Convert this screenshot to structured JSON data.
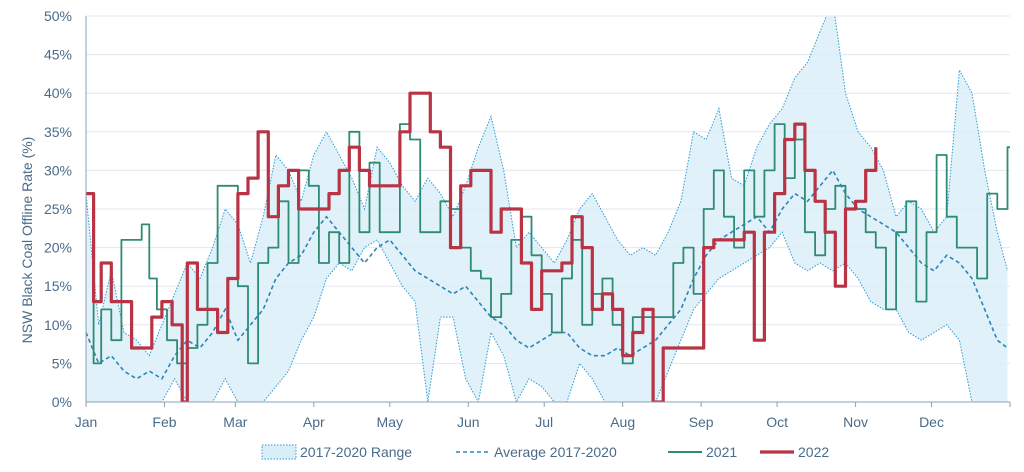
{
  "chart_data": {
    "type": "line",
    "title": "",
    "ylabel": "NSW Black Coal Offline Rate (%)",
    "xlabel": "",
    "ylim": [
      0,
      50
    ],
    "y_ticks": [
      "0%",
      "5%",
      "10%",
      "15%",
      "20%",
      "25%",
      "30%",
      "35%",
      "40%",
      "45%",
      "50%"
    ],
    "x_ticks": [
      "Jan",
      "Feb",
      "Mar",
      "Apr",
      "May",
      "Jun",
      "Jul",
      "Aug",
      "Sep",
      "Oct",
      "Nov",
      "Dec"
    ],
    "x_tick_days": [
      0,
      31,
      59,
      90,
      120,
      151,
      181,
      212,
      243,
      273,
      304,
      334
    ],
    "xlim_days": [
      0,
      365
    ],
    "grid": "horizontal",
    "legend_position": "bottom",
    "colors": {
      "range_fill": "#daeef8",
      "range_line": "#2b9bd6",
      "average": "#2a85b8",
      "y2021": "#2e8b74",
      "y2022": "#b83445",
      "axis": "#8aa0b4",
      "grid": "#e3e8ee",
      "text": "#4a6b8a"
    },
    "series": [
      {
        "name": "2017-2020 Range",
        "style": "band",
        "x": [
          0,
          5,
          10,
          15,
          20,
          25,
          30,
          35,
          40,
          45,
          50,
          55,
          60,
          65,
          70,
          75,
          80,
          85,
          90,
          95,
          100,
          105,
          110,
          115,
          120,
          125,
          130,
          135,
          140,
          145,
          150,
          155,
          160,
          165,
          170,
          175,
          180,
          185,
          190,
          195,
          200,
          205,
          210,
          215,
          220,
          225,
          230,
          235,
          240,
          245,
          250,
          255,
          260,
          265,
          270,
          275,
          280,
          285,
          290,
          295,
          300,
          305,
          310,
          315,
          320,
          325,
          330,
          335,
          340,
          345,
          350,
          355,
          360,
          364
        ],
        "upper": [
          27,
          10,
          17,
          9,
          8,
          6,
          10,
          14,
          18,
          16,
          20,
          25,
          23,
          18,
          24,
          32,
          30,
          26,
          32,
          35,
          32,
          29,
          25,
          33,
          31,
          28,
          26,
          29,
          27,
          24,
          28,
          33,
          37,
          30,
          20,
          22,
          20,
          18,
          21,
          25,
          27,
          24,
          21,
          19,
          20,
          19,
          22,
          26,
          35,
          34,
          38,
          29,
          28,
          33,
          36,
          38,
          42,
          44,
          48,
          52,
          40,
          35,
          33,
          30,
          24,
          26,
          25,
          22,
          24,
          43,
          40,
          30,
          22,
          17
        ],
        "lower": [
          0,
          0,
          0,
          0,
          0,
          0,
          0,
          3,
          0,
          0,
          0,
          3,
          0,
          0,
          0,
          2,
          4,
          8,
          11,
          16,
          18,
          17,
          20,
          21,
          18,
          15,
          13,
          0,
          11,
          11,
          3,
          0,
          9,
          6,
          0,
          3,
          2,
          0,
          0,
          5,
          3,
          0,
          0,
          0,
          0,
          0,
          4,
          8,
          12,
          14,
          16,
          17,
          18,
          19,
          20,
          22,
          18,
          17,
          18,
          17,
          18,
          16,
          13,
          12,
          12,
          9,
          8,
          9,
          10,
          8,
          0,
          0,
          0,
          0
        ]
      },
      {
        "name": "Average 2017-2020",
        "style": "dashed",
        "x": [
          0,
          5,
          10,
          15,
          20,
          25,
          30,
          35,
          40,
          45,
          50,
          55,
          60,
          65,
          70,
          75,
          80,
          85,
          90,
          95,
          100,
          105,
          110,
          115,
          120,
          125,
          130,
          135,
          140,
          145,
          150,
          155,
          160,
          165,
          170,
          175,
          180,
          185,
          190,
          195,
          200,
          205,
          210,
          215,
          220,
          225,
          230,
          235,
          240,
          245,
          250,
          255,
          260,
          265,
          270,
          275,
          280,
          285,
          290,
          295,
          300,
          305,
          310,
          315,
          320,
          325,
          330,
          335,
          340,
          345,
          350,
          355,
          360,
          364
        ],
        "values": [
          9,
          5,
          6,
          4,
          3,
          4,
          3,
          6,
          8,
          7,
          9,
          12,
          8,
          10,
          12,
          16,
          18,
          19,
          22,
          24,
          22,
          20,
          18,
          20,
          21,
          19,
          17,
          16,
          15,
          14,
          15,
          13,
          11,
          10,
          8,
          7,
          8,
          9,
          9,
          7,
          6,
          6,
          7,
          6,
          7,
          8,
          10,
          12,
          16,
          19,
          21,
          22,
          23,
          24,
          22,
          25,
          27,
          26,
          28,
          30,
          27,
          25,
          24,
          23,
          22,
          20,
          18,
          17,
          19,
          18,
          16,
          12,
          8,
          7
        ]
      },
      {
        "name": "2021",
        "style": "solid",
        "x": [
          0,
          3,
          6,
          10,
          14,
          18,
          22,
          25,
          28,
          32,
          36,
          40,
          44,
          48,
          52,
          56,
          60,
          64,
          68,
          72,
          76,
          80,
          84,
          88,
          92,
          96,
          100,
          104,
          108,
          112,
          116,
          120,
          124,
          128,
          132,
          136,
          140,
          144,
          148,
          152,
          156,
          160,
          164,
          168,
          172,
          176,
          180,
          184,
          188,
          192,
          196,
          200,
          204,
          208,
          212,
          216,
          220,
          224,
          228,
          232,
          236,
          240,
          244,
          248,
          252,
          256,
          260,
          264,
          268,
          272,
          276,
          280,
          284,
          288,
          292,
          296,
          300,
          304,
          308,
          312,
          316,
          320,
          324,
          328,
          332,
          336,
          340,
          344,
          348,
          352,
          356,
          360,
          364
        ],
        "values": [
          27,
          5,
          12,
          8,
          21,
          21,
          23,
          16,
          12,
          8,
          5,
          7,
          10,
          18,
          28,
          28,
          15,
          5,
          18,
          20,
          26,
          18,
          30,
          28,
          18,
          22,
          18,
          35,
          22,
          31,
          22,
          22,
          36,
          34,
          22,
          22,
          26,
          25,
          20,
          17,
          16,
          11,
          14,
          21,
          24,
          19,
          14,
          9,
          16,
          21,
          10,
          14,
          16,
          10,
          5,
          11,
          11,
          11,
          11,
          18,
          20,
          14,
          25,
          30,
          24,
          20,
          30,
          24,
          30,
          36,
          29,
          34,
          22,
          19,
          25,
          28,
          25,
          25,
          22,
          20,
          12,
          22,
          26,
          13,
          22,
          32,
          24,
          20,
          20,
          16,
          27,
          25,
          33
        ]
      },
      {
        "name": "2022",
        "style": "solid",
        "x": [
          0,
          3,
          6,
          10,
          14,
          18,
          22,
          26,
          30,
          34,
          38,
          40,
          44,
          48,
          52,
          56,
          60,
          64,
          68,
          72,
          76,
          80,
          84,
          88,
          92,
          96,
          100,
          104,
          108,
          112,
          116,
          120,
          124,
          128,
          132,
          136,
          140,
          144,
          148,
          152,
          156,
          160,
          164,
          168,
          172,
          176,
          180,
          184,
          188,
          192,
          196,
          200,
          204,
          208,
          212,
          216,
          220,
          224,
          228,
          232,
          236,
          240,
          244,
          248,
          252,
          256,
          260,
          264,
          268,
          272,
          276,
          280,
          284,
          288,
          292,
          296,
          300,
          304,
          308,
          312
        ],
        "values": [
          27,
          13,
          18,
          13,
          13,
          7,
          7,
          11,
          13,
          10,
          0,
          18,
          12,
          12,
          9,
          16,
          27,
          29,
          35,
          24,
          28,
          30,
          25,
          25,
          25,
          27,
          30,
          33,
          30,
          28,
          28,
          28,
          35,
          40,
          40,
          35,
          33,
          20,
          28,
          30,
          30,
          22,
          25,
          25,
          18,
          12,
          17,
          17,
          18,
          24,
          20,
          12,
          14,
          12,
          6,
          9,
          12,
          0,
          7,
          7,
          7,
          7,
          20,
          21,
          21,
          21,
          22,
          8,
          22,
          27,
          34,
          36,
          30,
          26,
          22,
          15,
          25,
          26,
          30,
          33
        ]
      }
    ]
  }
}
